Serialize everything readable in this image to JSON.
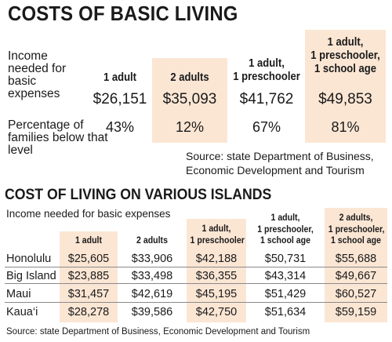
{
  "section1": {
    "title": "COSTS OF BASIC LIVING",
    "row_income_label": "Income needed for basic expenses",
    "row_percent_label": "Percentage of families below that level",
    "columns": [
      {
        "header": [
          "1 adult"
        ],
        "income": "$26,151",
        "percent": "43%"
      },
      {
        "header": [
          "2 adults"
        ],
        "income": "$35,093",
        "percent": "12%"
      },
      {
        "header": [
          "1 adult,",
          "1 preschooler"
        ],
        "income": "$41,762",
        "percent": "67%"
      },
      {
        "header": [
          "1 adult,",
          "1 preschooler,",
          "1 school age"
        ],
        "income": "$49,853",
        "percent": "81%"
      }
    ],
    "source_lines": [
      "Source: state Department of Business,",
      "Economic Development and Tourism"
    ]
  },
  "section2": {
    "title": "COST OF LIVING ON VARIOUS ISLANDS",
    "subtitle": "Income needed for basic expenses",
    "columns": [
      [
        "1 adult"
      ],
      [
        "2 adults"
      ],
      [
        "1 adult,",
        "1 preschooler"
      ],
      [
        "1 adult,",
        "1 preschooler,",
        "1 school age"
      ],
      [
        "2 adults,",
        "1 preschooler,",
        "1 school age"
      ]
    ],
    "rows": [
      {
        "island": "Honolulu",
        "values": [
          "$25,605",
          "$33,906",
          "$42,188",
          "$50,731",
          "$55,688"
        ]
      },
      {
        "island": "Big Island",
        "values": [
          "$23,885",
          "$33,498",
          "$36,355",
          "$43,314",
          "$49,667"
        ]
      },
      {
        "island": "Maui",
        "values": [
          "$31,457",
          "$42,619",
          "$45,195",
          "$51,429",
          "$60,527"
        ]
      },
      {
        "island": "Kaua‘i",
        "values": [
          "$28,278",
          "$39,586",
          "$42,750",
          "$51,634",
          "$59,159"
        ]
      }
    ],
    "source": "Source: state Department of Business, Economic Development and Tourism"
  },
  "colors": {
    "highlight": "#fbe6d4",
    "text": "#1a1a1a",
    "rule": "#8a8a8a"
  }
}
